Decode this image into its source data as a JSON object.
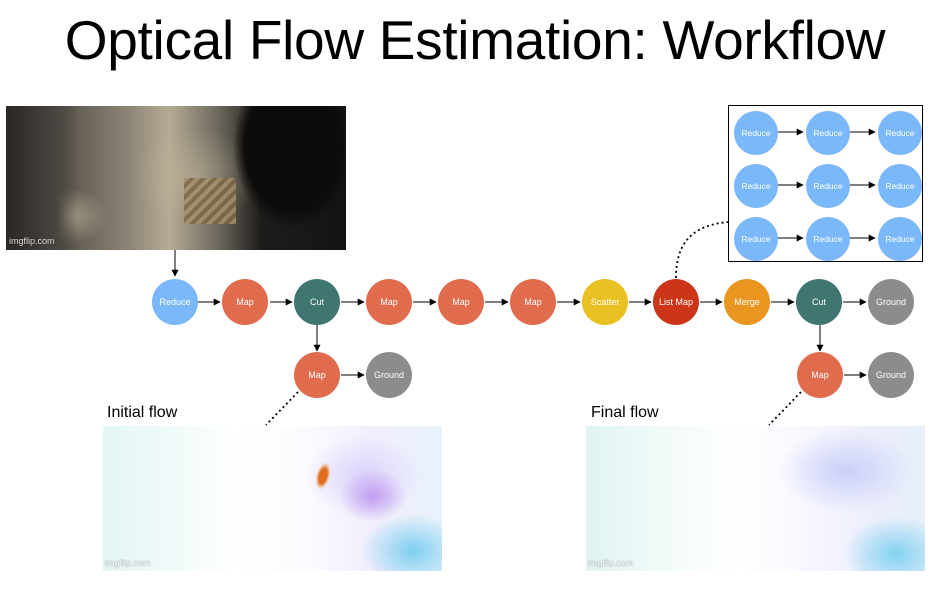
{
  "title": "Optical Flow Estimation: Workflow",
  "pipeline": {
    "nodes": [
      {
        "label": "Reduce",
        "color": "#7ab8fa"
      },
      {
        "label": "Map",
        "color": "#e06b4d"
      },
      {
        "label": "Cut",
        "color": "#3f7670"
      },
      {
        "label": "Map",
        "color": "#e06b4d"
      },
      {
        "label": "Map",
        "color": "#e06b4d"
      },
      {
        "label": "Map",
        "color": "#e06b4d"
      },
      {
        "label": "Scatter",
        "color": "#eac122"
      },
      {
        "label": "List Map",
        "color": "#cc3518"
      },
      {
        "label": "Merge",
        "color": "#e9951f"
      },
      {
        "label": "Cut",
        "color": "#3f7670"
      },
      {
        "label": "Ground",
        "color": "#8c8c8c"
      }
    ],
    "initial_branch": [
      {
        "label": "Map",
        "color": "#e06b4d"
      },
      {
        "label": "Ground",
        "color": "#8c8c8c"
      }
    ],
    "final_branch": [
      {
        "label": "Map",
        "color": "#e06b4d"
      },
      {
        "label": "Ground",
        "color": "#8c8c8c"
      }
    ]
  },
  "list_map_detail": {
    "rows": [
      [
        "Reduce",
        "Reduce",
        "Reduce"
      ],
      [
        "Reduce",
        "Reduce",
        "Reduce"
      ],
      [
        "Reduce",
        "Reduce",
        "Reduce"
      ]
    ],
    "color": "#7ab8fa"
  },
  "images": {
    "input_frame_watermark": "imgflip.com",
    "initial_flow_caption": "Initial flow",
    "initial_flow_watermark": "imgflip.com",
    "final_flow_caption": "Final flow",
    "final_flow_watermark": "imgflip.com"
  }
}
